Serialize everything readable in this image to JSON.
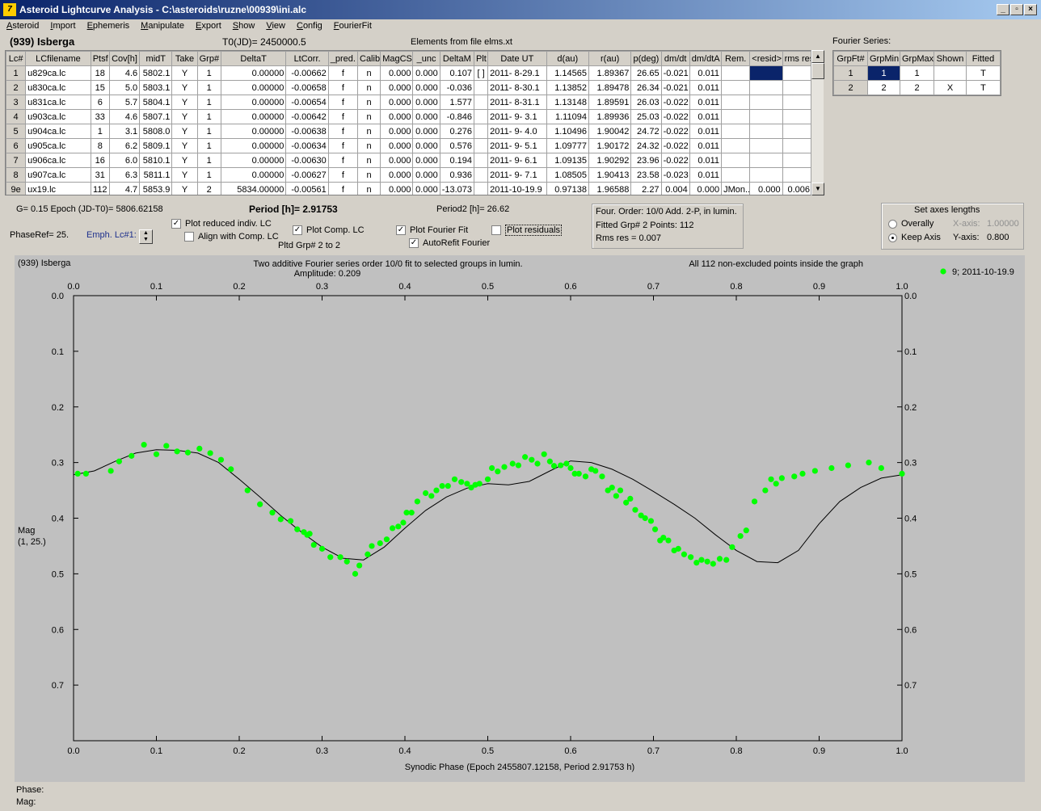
{
  "window": {
    "title": "Asteroid Lightcurve Analysis - C:\\asteroids\\ruzne\\00939\\ini.alc",
    "icon_glyph": "7",
    "minimize": "_",
    "restore": "▫",
    "close": "×"
  },
  "menu": [
    "Asteroid",
    "Import",
    "Ephemeris",
    "Manipulate",
    "Export",
    "Show",
    "View",
    "Config",
    "FourierFit"
  ],
  "header": {
    "asteroid": "(939) Isberga",
    "t0": "T0(JD)= 2450000.5",
    "elements": "Elements from file elms.xt",
    "fourier_series_label": "Fourier Series:"
  },
  "lc_table": {
    "columns": [
      "Lc#",
      "LCfilename",
      "Ptsf",
      "Cov[h]",
      "midT",
      "Take",
      "Grp#",
      "DeltaT",
      "LtCorr.",
      "_pred.",
      "Calib.",
      "MagCS",
      "_unc",
      "DeltaM",
      "Plt",
      "Date UT",
      "d(au)",
      "r(au)",
      "p(deg)",
      "dm/dt",
      "dm/dtA",
      "Rem.",
      "<resid>",
      "rms res"
    ],
    "rows": [
      [
        "1",
        "u829ca.lc",
        "18",
        "4.6",
        "5802.1",
        "Y",
        "1",
        "0.00000",
        "-0.00662",
        "f",
        "n",
        "0.000",
        "0.000",
        "0.107",
        "[ ]",
        "2011- 8-29.1",
        "1.14565",
        "1.89367",
        "26.65",
        "-0.021",
        "0.011",
        "",
        "",
        ""
      ],
      [
        "2",
        "u830ca.lc",
        "15",
        "5.0",
        "5803.1",
        "Y",
        "1",
        "0.00000",
        "-0.00658",
        "f",
        "n",
        "0.000",
        "0.000",
        "-0.036",
        "",
        "2011- 8-30.1",
        "1.13852",
        "1.89478",
        "26.34",
        "-0.021",
        "0.011",
        "",
        "",
        ""
      ],
      [
        "3",
        "u831ca.lc",
        "6",
        "5.7",
        "5804.1",
        "Y",
        "1",
        "0.00000",
        "-0.00654",
        "f",
        "n",
        "0.000",
        "0.000",
        "1.577",
        "",
        "2011- 8-31.1",
        "1.13148",
        "1.89591",
        "26.03",
        "-0.022",
        "0.011",
        "",
        "",
        ""
      ],
      [
        "4",
        "u903ca.lc",
        "33",
        "4.6",
        "5807.1",
        "Y",
        "1",
        "0.00000",
        "-0.00642",
        "f",
        "n",
        "0.000",
        "0.000",
        "-0.846",
        "",
        "2011- 9- 3.1",
        "1.11094",
        "1.89936",
        "25.03",
        "-0.022",
        "0.011",
        "",
        "",
        ""
      ],
      [
        "5",
        "u904ca.lc",
        "1",
        "3.1",
        "5808.0",
        "Y",
        "1",
        "0.00000",
        "-0.00638",
        "f",
        "n",
        "0.000",
        "0.000",
        "0.276",
        "",
        "2011- 9- 4.0",
        "1.10496",
        "1.90042",
        "24.72",
        "-0.022",
        "0.011",
        "",
        "",
        ""
      ],
      [
        "6",
        "u905ca.lc",
        "8",
        "6.2",
        "5809.1",
        "Y",
        "1",
        "0.00000",
        "-0.00634",
        "f",
        "n",
        "0.000",
        "0.000",
        "0.576",
        "",
        "2011- 9- 5.1",
        "1.09777",
        "1.90172",
        "24.32",
        "-0.022",
        "0.011",
        "",
        "",
        ""
      ],
      [
        "7",
        "u906ca.lc",
        "16",
        "6.0",
        "5810.1",
        "Y",
        "1",
        "0.00000",
        "-0.00630",
        "f",
        "n",
        "0.000",
        "0.000",
        "0.194",
        "",
        "2011- 9- 6.1",
        "1.09135",
        "1.90292",
        "23.96",
        "-0.022",
        "0.011",
        "",
        "",
        ""
      ],
      [
        "8",
        "u907ca.lc",
        "31",
        "6.3",
        "5811.1",
        "Y",
        "1",
        "0.00000",
        "-0.00627",
        "f",
        "n",
        "0.000",
        "0.000",
        "0.936",
        "",
        "2011- 9- 7.1",
        "1.08505",
        "1.90413",
        "23.58",
        "-0.023",
        "0.011",
        "",
        "",
        ""
      ],
      [
        "9e",
        "ux19.lc",
        "112",
        "4.7",
        "5853.9",
        "Y",
        "2",
        "5834.00000",
        "-0.00561",
        "f",
        "n",
        "0.000",
        "0.000",
        "-13.073",
        "",
        "2011-10-19.9",
        "0.97138",
        "1.96588",
        "2.27",
        "0.004",
        "0.000",
        "JMon..",
        "0.000",
        "0.006"
      ]
    ]
  },
  "fourier_table": {
    "columns": [
      "GrpFt#",
      "GrpMin",
      "GrpMax",
      "Shown",
      "Fitted"
    ],
    "rows": [
      [
        "1",
        "1",
        "1",
        "",
        "T"
      ],
      [
        "2",
        "2",
        "2",
        "X",
        "T"
      ]
    ]
  },
  "controls": {
    "g_epoch": "G= 0.15   Epoch (JD-T0)= 5806.62158",
    "period": "Period [h]= 2.91753",
    "period2": "Period2 [h]= 26.62",
    "phase_ref": "PhaseRef= 25.",
    "emph_lc": "Emph. Lc#1:",
    "plot_reduced": "Plot reduced indiv. LC",
    "align_comp": "Align with Comp. LC",
    "plot_comp": "Plot Comp. LC",
    "plotted_grp": "Pltd Grp#  2  to   2",
    "plot_fourier": "Plot Fourier Fit",
    "autorefit": "AutoRefit Fourier",
    "plot_residuals": "Plot residuals",
    "info1": "Four. Order: 10/0     Add. 2-P, in lumin.",
    "info2": "Fitted Grp# 2          Points: 112",
    "info3": "Rms res     = 0.007",
    "axes_title": "Set axes lengths",
    "overally": "Overally",
    "keep_axis": "Keep Axis",
    "x_axis_label": "X-axis:",
    "x_axis_value": "1.00000",
    "y_axis_label": "Y-axis:",
    "y_axis_value": "0.800"
  },
  "plot": {
    "name": "(939) Isberga",
    "caption": "Two additive Fourier series order 10/0 fit to selected groups in lumin.",
    "amplitude": "Amplitude: 0.209",
    "points_note": "All 112 non-excluded points inside the graph",
    "legend": "9; 2011-10-19.9",
    "ylabel1": "Mag",
    "ylabel2": "(1, 25.)",
    "xlabel": "Synodic Phase (Epoch 2455807.12158, Period 2.91753 h)",
    "point_color": "#00ff00"
  },
  "chart_data": {
    "type": "scatter",
    "xlim": [
      0.0,
      1.0
    ],
    "ylim": [
      0.0,
      0.8
    ],
    "y_inverted": true,
    "xticks": [
      "0.0",
      "0.1",
      "0.2",
      "0.3",
      "0.4",
      "0.5",
      "0.6",
      "0.7",
      "0.8",
      "0.9",
      "1.0"
    ],
    "yticks": [
      "0.0",
      "0.1",
      "0.2",
      "0.3",
      "0.4",
      "0.5",
      "0.6",
      "0.7"
    ],
    "series": [
      {
        "name": "9; 2011-10-19.9",
        "x": [
          0.005,
          0.015,
          0.045,
          0.055,
          0.07,
          0.085,
          0.1,
          0.112,
          0.125,
          0.138,
          0.152,
          0.165,
          0.178,
          0.19,
          0.21,
          0.225,
          0.24,
          0.25,
          0.262,
          0.27,
          0.278,
          0.282,
          0.285,
          0.29,
          0.3,
          0.31,
          0.322,
          0.33,
          0.34,
          0.345,
          0.355,
          0.36,
          0.37,
          0.378,
          0.385,
          0.392,
          0.398,
          0.402,
          0.408,
          0.415,
          0.425,
          0.432,
          0.438,
          0.445,
          0.452,
          0.46,
          0.468,
          0.475,
          0.48,
          0.485,
          0.49,
          0.5,
          0.505,
          0.512,
          0.52,
          0.53,
          0.537,
          0.545,
          0.553,
          0.56,
          0.568,
          0.575,
          0.58,
          0.588,
          0.595,
          0.6,
          0.605,
          0.61,
          0.618,
          0.625,
          0.63,
          0.638,
          0.645,
          0.65,
          0.655,
          0.66,
          0.667,
          0.672,
          0.678,
          0.685,
          0.69,
          0.697,
          0.702,
          0.708,
          0.712,
          0.718,
          0.725,
          0.73,
          0.737,
          0.745,
          0.752,
          0.758,
          0.765,
          0.772,
          0.78,
          0.788,
          0.795,
          0.805,
          0.812,
          0.822,
          0.835,
          0.842,
          0.848,
          0.855,
          0.87,
          0.88,
          0.895,
          0.915,
          0.935,
          0.96,
          0.975,
          1.0
        ],
        "y": [
          0.32,
          0.32,
          0.315,
          0.298,
          0.288,
          0.268,
          0.285,
          0.27,
          0.28,
          0.282,
          0.275,
          0.283,
          0.295,
          0.312,
          0.35,
          0.375,
          0.39,
          0.402,
          0.405,
          0.42,
          0.425,
          0.43,
          0.428,
          0.448,
          0.455,
          0.47,
          0.47,
          0.478,
          0.5,
          0.485,
          0.465,
          0.45,
          0.445,
          0.438,
          0.418,
          0.415,
          0.408,
          0.39,
          0.39,
          0.37,
          0.355,
          0.36,
          0.35,
          0.342,
          0.342,
          0.33,
          0.335,
          0.338,
          0.345,
          0.34,
          0.338,
          0.33,
          0.31,
          0.316,
          0.308,
          0.302,
          0.305,
          0.29,
          0.295,
          0.302,
          0.285,
          0.298,
          0.306,
          0.305,
          0.302,
          0.31,
          0.32,
          0.32,
          0.325,
          0.312,
          0.315,
          0.325,
          0.35,
          0.345,
          0.36,
          0.35,
          0.372,
          0.365,
          0.385,
          0.395,
          0.4,
          0.405,
          0.42,
          0.44,
          0.435,
          0.44,
          0.458,
          0.455,
          0.465,
          0.47,
          0.48,
          0.475,
          0.478,
          0.482,
          0.473,
          0.475,
          0.452,
          0.432,
          0.422,
          0.37,
          0.35,
          0.33,
          0.338,
          0.328,
          0.325,
          0.32,
          0.315,
          0.31,
          0.305,
          0.3,
          0.31,
          0.32
        ]
      },
      {
        "name": "Fourier fit",
        "x": [
          0.0,
          0.025,
          0.05,
          0.075,
          0.1,
          0.125,
          0.15,
          0.175,
          0.2,
          0.225,
          0.25,
          0.275,
          0.3,
          0.325,
          0.35,
          0.375,
          0.4,
          0.425,
          0.45,
          0.475,
          0.5,
          0.525,
          0.55,
          0.575,
          0.6,
          0.625,
          0.65,
          0.675,
          0.7,
          0.725,
          0.75,
          0.775,
          0.8,
          0.825,
          0.85,
          0.875,
          0.9,
          0.925,
          0.95,
          0.975,
          1.0
        ],
        "y": [
          0.322,
          0.315,
          0.298,
          0.283,
          0.277,
          0.278,
          0.283,
          0.3,
          0.33,
          0.362,
          0.395,
          0.425,
          0.452,
          0.472,
          0.475,
          0.452,
          0.418,
          0.386,
          0.362,
          0.346,
          0.338,
          0.34,
          0.334,
          0.315,
          0.297,
          0.3,
          0.312,
          0.33,
          0.352,
          0.375,
          0.4,
          0.43,
          0.458,
          0.478,
          0.48,
          0.458,
          0.41,
          0.37,
          0.345,
          0.328,
          0.322
        ]
      }
    ]
  }
}
